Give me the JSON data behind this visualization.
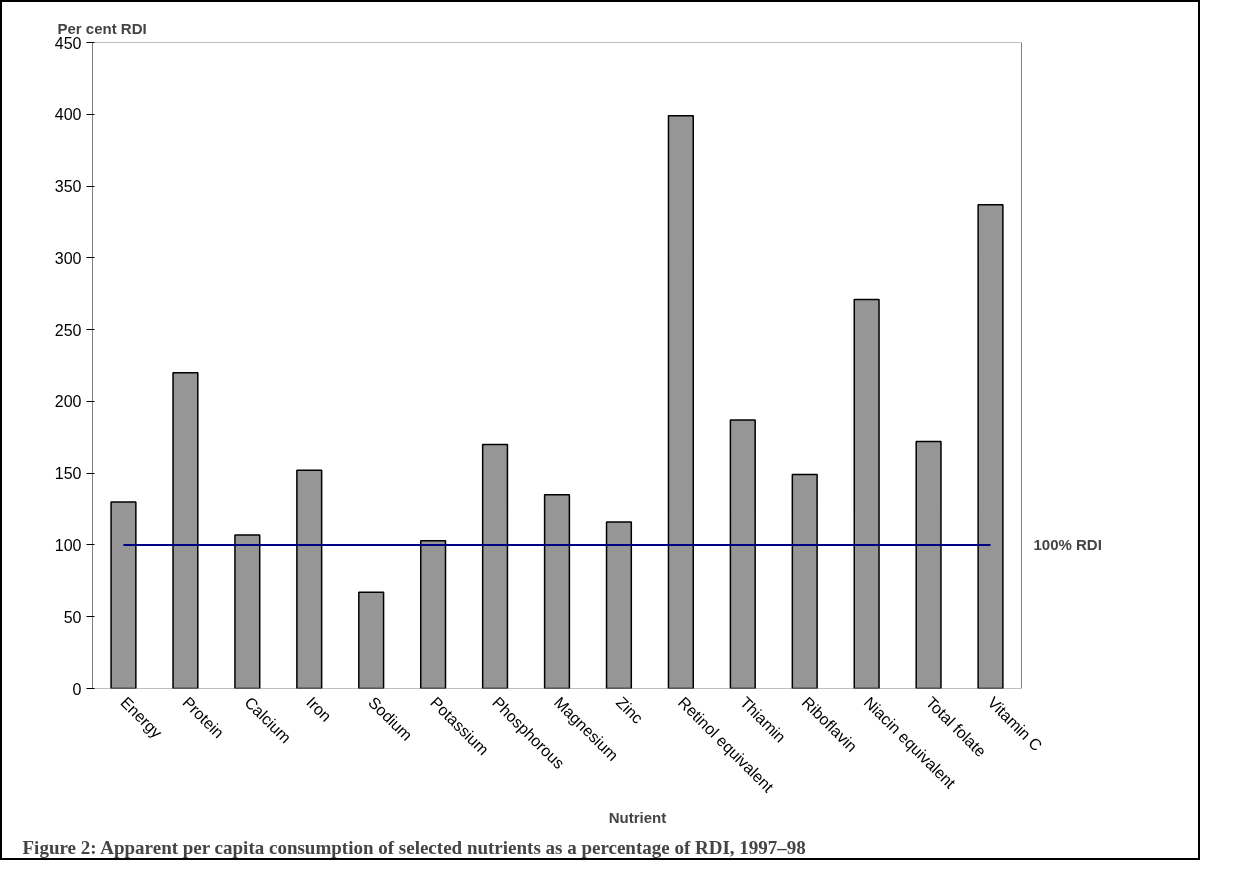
{
  "chart_data": {
    "type": "bar",
    "title": "Figure 2:  Apparent per capita consumption of selected nutrients as a percentage of RDI, 1997–98",
    "xlabel": "Nutrient",
    "ylabel": "Per cent RDI",
    "categories": [
      "Energy",
      "Protein",
      "Calcium",
      "Iron",
      "Sodium",
      "Potassium",
      "Phosphorous",
      "Magnesium",
      "Zinc",
      "Retinol equivalent",
      "Thiamin",
      "Riboflavin",
      "Niacin equivalent",
      "Total folate",
      "Vitamin C"
    ],
    "values": [
      130,
      220,
      107,
      152,
      67,
      103,
      170,
      135,
      116,
      399,
      187,
      149,
      271,
      172,
      337
    ],
    "color": "#969696",
    "ylim": [
      0,
      450
    ],
    "yticks": [
      0,
      50,
      100,
      150,
      200,
      250,
      300,
      350,
      400,
      450
    ],
    "ref_lines": [
      {
        "axis": "y",
        "value": 100,
        "label": "100% RDI",
        "color": "#000080"
      }
    ],
    "grid": false
  }
}
